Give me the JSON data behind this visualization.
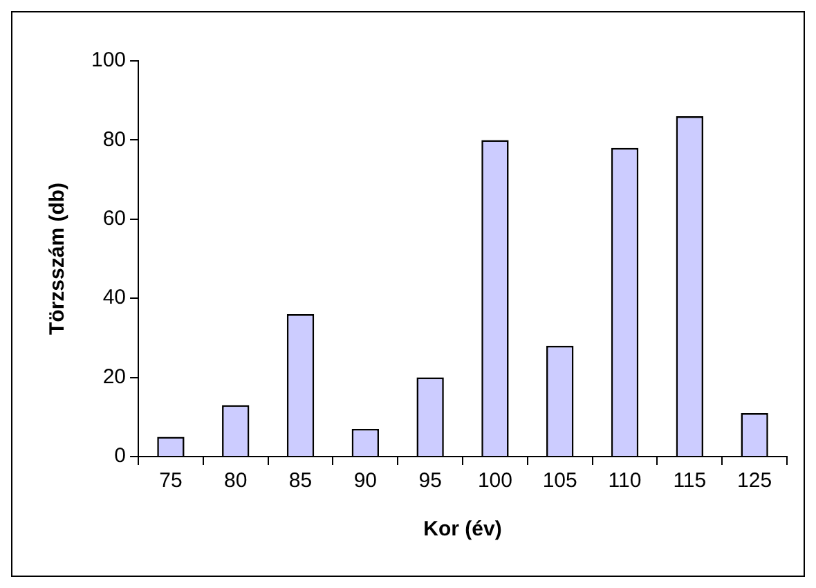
{
  "chart_data": {
    "type": "bar",
    "xlabel": "Kor (év)",
    "ylabel": "Törzsszám (db)",
    "categories": [
      "75",
      "80",
      "85",
      "90",
      "95",
      "100",
      "105",
      "110",
      "115",
      "125"
    ],
    "values": [
      5,
      13,
      36,
      7,
      20,
      80,
      28,
      78,
      86,
      11
    ],
    "color": "#ccccff",
    "ylim": [
      0,
      100
    ],
    "yticks": [
      0,
      20,
      40,
      60,
      80,
      100
    ],
    "grid": false,
    "legend": false
  }
}
